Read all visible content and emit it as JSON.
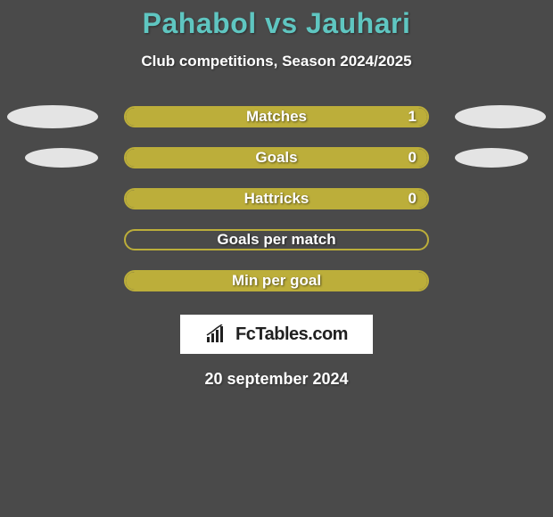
{
  "background_color": "#4a4a4a",
  "header": {
    "title": "Pahabol vs Jauhari",
    "title_color": "#5fc6c1",
    "title_fontsize": 32,
    "subtitle": "Club competitions, Season 2024/2025",
    "subtitle_color": "#ffffff",
    "subtitle_fontsize": 17
  },
  "bars": {
    "outer_width": 342,
    "outer_height": 24,
    "border_color": "#bcae3a",
    "fill_color": "#bcae3a",
    "track_color": "transparent",
    "label_color": "#ffffff",
    "label_fontsize": 17,
    "value_color": "#ffffff",
    "rows": [
      {
        "label": "Matches",
        "value": "1",
        "fill_pct": 100,
        "show_value": true
      },
      {
        "label": "Goals",
        "value": "0",
        "fill_pct": 100,
        "show_value": true
      },
      {
        "label": "Hattricks",
        "value": "0",
        "fill_pct": 100,
        "show_value": true
      },
      {
        "label": "Goals per match",
        "value": "",
        "fill_pct": 0,
        "show_value": false
      },
      {
        "label": "Min per goal",
        "value": "",
        "fill_pct": 100,
        "show_value": false
      }
    ]
  },
  "ellipses": {
    "color": "#e4e4e4",
    "rows": [
      {
        "left": true,
        "right": true,
        "size": "large"
      },
      {
        "left": true,
        "right": true,
        "size": "small"
      }
    ]
  },
  "logo": {
    "box_bg": "#ffffff",
    "text": "FcTables.com",
    "text_color": "#202020",
    "text_fontsize": 20,
    "icon_color": "#202020"
  },
  "footer": {
    "date": "20 september 2024",
    "date_color": "#ffffff",
    "date_fontsize": 18
  }
}
